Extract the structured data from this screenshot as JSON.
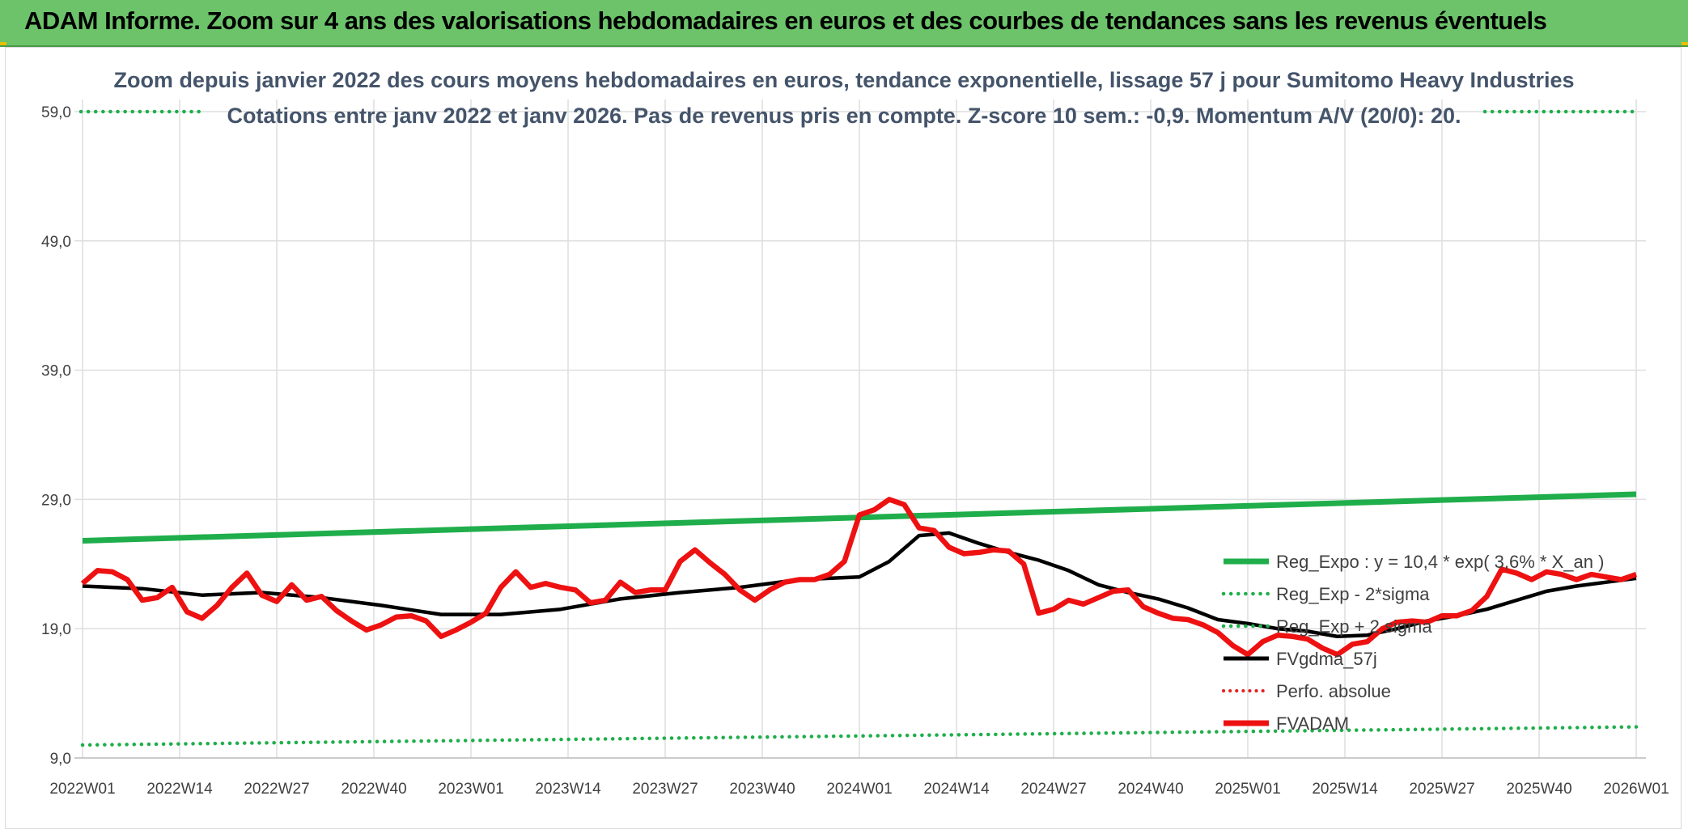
{
  "banner": {
    "title": "ADAM Informe. Zoom sur 4 ans des valorisations hebdomadaires en euros et des courbes de tendances sans les revenus éventuels"
  },
  "colors": {
    "banner_bg": "#6cc36a",
    "reg_expo": "#1fae4b",
    "sigma": "#1fae4b",
    "fvgdma": "#000000",
    "perfo": "#e02020",
    "fvadam": "#ee1111"
  },
  "chart_data": {
    "type": "line",
    "subtitle_line1": "Zoom depuis janvier 2022 des cours moyens hebdomadaires en euros, tendance exponentielle, lissage 57 j pour Sumitomo Heavy Industries",
    "subtitle_line2": "Cotations entre janv 2022 et janv 2026. Pas de revenus pris en compte. Z-score 10 sem.: -0,9. Momentum A/V (20/0): 20.",
    "x_tick_labels": [
      "2022W01",
      "2022W14",
      "2022W27",
      "2022W40",
      "2023W01",
      "2023W14",
      "2023W27",
      "2023W40",
      "2024W01",
      "2024W14",
      "2024W27",
      "2024W40",
      "2025W01",
      "2025W14",
      "2025W27",
      "2025W40",
      "2026W01"
    ],
    "y_tick_labels": [
      "9,0",
      "19,0",
      "29,0",
      "39,0",
      "49,0",
      "59,0"
    ],
    "ylim": [
      9,
      59
    ],
    "grid": true,
    "legend_position": "right",
    "legend": [
      {
        "key": "reg_expo",
        "label": "Reg_Expo : y = 10,4 * exp( 3,6% *  X_an )",
        "style": "solid"
      },
      {
        "key": "sigma_minus",
        "label": "Reg_Exp - 2*sigma",
        "style": "dotted"
      },
      {
        "key": "sigma_plus",
        "label": "Reg_Exp + 2 sigma",
        "style": "dotted"
      },
      {
        "key": "fvgdma",
        "label": "FVgdma_57j",
        "style": "solid"
      },
      {
        "key": "perfo",
        "label": "Perfo. absolue",
        "style": "dotted"
      },
      {
        "key": "fvadam",
        "label": "FVADAM",
        "style": "solid"
      }
    ],
    "series": {
      "reg_expo": {
        "x": [
          0,
          208
        ],
        "values": [
          25.8,
          29.4
        ]
      },
      "sigma_minus": {
        "x": [
          0,
          208
        ],
        "values": [
          10.0,
          11.4
        ]
      },
      "sigma_plus": {
        "x": [
          0,
          208
        ],
        "values": [
          59.0,
          59.0
        ]
      },
      "fvgdma": {
        "x": [
          0,
          8,
          16,
          24,
          32,
          40,
          48,
          56,
          64,
          72,
          80,
          88,
          96,
          104,
          108,
          112,
          116,
          120,
          124,
          128,
          132,
          136,
          140,
          144,
          148,
          152,
          156,
          160,
          164,
          168,
          172,
          176,
          180,
          184,
          188,
          192,
          196,
          200,
          204,
          208
        ],
        "values": [
          22.3,
          22.1,
          21.6,
          21.8,
          21.4,
          20.8,
          20.1,
          20.1,
          20.5,
          21.3,
          21.8,
          22.2,
          22.8,
          23.0,
          24.2,
          26.2,
          26.4,
          25.6,
          24.9,
          24.3,
          23.5,
          22.4,
          21.8,
          21.3,
          20.6,
          19.7,
          19.4,
          19.0,
          18.8,
          18.4,
          18.5,
          19.0,
          19.6,
          20.0,
          20.5,
          21.2,
          21.9,
          22.3,
          22.6,
          22.9
        ]
      },
      "fvadam": {
        "x": [
          0,
          2,
          4,
          6,
          8,
          10,
          12,
          14,
          16,
          18,
          20,
          22,
          24,
          26,
          28,
          30,
          32,
          34,
          36,
          38,
          40,
          42,
          44,
          46,
          48,
          50,
          52,
          54,
          56,
          58,
          60,
          62,
          64,
          66,
          68,
          70,
          72,
          74,
          76,
          78,
          80,
          82,
          84,
          86,
          88,
          90,
          92,
          94,
          96,
          98,
          100,
          102,
          104,
          106,
          108,
          110,
          112,
          114,
          116,
          118,
          120,
          122,
          124,
          126,
          128,
          130,
          132,
          134,
          136,
          138,
          140,
          142,
          144,
          146,
          148,
          150,
          152,
          154,
          156,
          158,
          160,
          162,
          164,
          166,
          168,
          170,
          172,
          174,
          176,
          178,
          180,
          182,
          184,
          186,
          188,
          190,
          192,
          194,
          196,
          198,
          200,
          202,
          204,
          206,
          208
        ],
        "values": [
          22.5,
          23.5,
          23.4,
          22.8,
          21.2,
          21.4,
          22.2,
          20.3,
          19.8,
          20.8,
          22.2,
          23.3,
          21.6,
          21.1,
          22.4,
          21.2,
          21.5,
          20.4,
          19.6,
          18.9,
          19.3,
          19.9,
          20.0,
          19.6,
          18.4,
          18.9,
          19.5,
          20.2,
          22.2,
          23.4,
          22.2,
          22.5,
          22.2,
          22.0,
          21.0,
          21.2,
          22.6,
          21.8,
          22.0,
          22.0,
          24.2,
          25.1,
          24.1,
          23.2,
          22.0,
          21.2,
          22.0,
          22.6,
          22.8,
          22.8,
          23.2,
          24.2,
          27.8,
          28.2,
          29.0,
          28.6,
          26.8,
          26.6,
          25.3,
          24.8,
          24.9,
          25.1,
          25.0,
          24.0,
          20.2,
          20.5,
          21.2,
          20.9,
          21.4,
          21.9,
          22.0,
          20.7,
          20.2,
          19.8,
          19.7,
          19.3,
          18.7,
          17.7,
          17.0,
          18.0,
          18.5,
          18.4,
          18.2,
          17.5,
          17.0,
          17.8,
          18.0,
          19.0,
          19.5,
          19.6,
          19.5,
          20.0,
          20.0,
          20.4,
          21.5,
          23.6,
          23.3,
          22.8,
          23.4,
          23.2,
          22.8,
          23.2,
          23.0,
          22.8,
          23.2
        ]
      }
    }
  }
}
